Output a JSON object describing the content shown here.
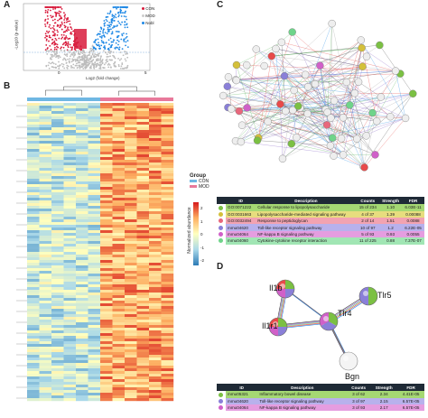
{
  "panels": {
    "A": "A",
    "B": "B",
    "C": "C",
    "D": "D"
  },
  "volcano": {
    "ylabel": "-Log10 (p-value)",
    "xlabel": "Log2 (fold change)",
    "x_ticks": [
      "0",
      "5"
    ],
    "legend": [
      {
        "label": "CON",
        "color": "#d81b3c"
      },
      {
        "label": "MOD",
        "color": "#cccccc"
      },
      {
        "label": "Nobl",
        "color": "#1e88e5"
      }
    ]
  },
  "heatmap": {
    "legend_title": "Group",
    "groups": [
      {
        "label": "CON",
        "color": "#6fb7e3"
      },
      {
        "label": "MOD",
        "color": "#e8799b"
      }
    ],
    "scale_label": "Normalized abundance",
    "scale_ticks": [
      "2",
      "1",
      "0",
      "-1",
      "-2"
    ],
    "scale_colors": {
      "high": "#d7191c",
      "mid": "#ffffbf",
      "low": "#2c7bb6"
    }
  },
  "table_c": {
    "headers": [
      "ID",
      "Description",
      "Counts",
      "Strength",
      "FDR"
    ],
    "rows": [
      {
        "id": "GO:0071222",
        "desc": "Cellular response to lipopolysaccharide",
        "counts": "15 of 234",
        "strength": "1.10",
        "fdr": "6.03E-11",
        "color": "#7bc043",
        "bg": "#a5d873"
      },
      {
        "id": "GO:0031663",
        "desc": "Lipopolysaccharide-mediated signaling pathway",
        "counts": "4 of 37",
        "strength": "1.39",
        "fdr": "0.00088",
        "color": "#d4c03a",
        "bg": "#e7dd7e"
      },
      {
        "id": "GO:0032494",
        "desc": "Response to peptidoglycan",
        "counts": "2 of 14",
        "strength": "1.51",
        "fdr": "0.0088",
        "color": "#e8677c",
        "bg": "#f2a3b1"
      },
      {
        "id": "mmu04620",
        "desc": "Toll-like receptor signaling pathway",
        "counts": "10 of 97",
        "strength": "1.2",
        "fdr": "6.22E-05",
        "color": "#8a7fd8",
        "bg": "#b8b1ec"
      },
      {
        "id": "mmu04064",
        "desc": "NF-kappa B signaling pathway",
        "counts": "5 of 93",
        "strength": "0.93",
        "fdr": "0.0055",
        "color": "#d060c8",
        "bg": "#e59de0"
      },
      {
        "id": "mmu04060",
        "desc": "Cytokine-cytokine receptor interaction",
        "counts": "11 of 225",
        "strength": "0.88",
        "fdr": "7.37E-07",
        "color": "#6fd48a",
        "bg": "#a1e6b4"
      }
    ]
  },
  "table_d": {
    "headers": [
      "ID",
      "Description",
      "Counts",
      "Strength",
      "FDR"
    ],
    "rows": [
      {
        "id": "mmu05321",
        "desc": "Inflammatory bowel disease",
        "counts": "3 of 62",
        "strength": "2.34",
        "fdr": "4.41E-05",
        "color": "#7bc043",
        "bg": "#a5d873"
      },
      {
        "id": "mmu04620",
        "desc": "Toll-like receptor signaling pathway",
        "counts": "3 of 97",
        "strength": "2.15",
        "fdr": "6.57E-05",
        "color": "#8a7fd8",
        "bg": "#b8b1ec"
      },
      {
        "id": "mmu04064",
        "desc": "NF-kappa B signaling pathway",
        "counts": "3 of 93",
        "strength": "2.17",
        "fdr": "6.57E-05",
        "color": "#d060c8",
        "bg": "#e59de0"
      }
    ]
  },
  "network_d": {
    "nodes": [
      {
        "label": "Il1b",
        "colors": [
          "#7bc043",
          "#8a7fd8",
          "#d060c8",
          "#e84a4a"
        ]
      },
      {
        "label": "Tlr4",
        "colors": [
          "#7bc043",
          "#8a7fd8",
          "#d060c8"
        ]
      },
      {
        "label": "Il1r1",
        "colors": [
          "#7bc043",
          "#8a7fd8",
          "#d060c8",
          "#e84a4a"
        ]
      },
      {
        "label": "Tlr5",
        "colors": [
          "#7bc043",
          "#8a7fd8"
        ]
      },
      {
        "label": "Bgn",
        "colors": [
          "#f4f4f4"
        ]
      }
    ]
  }
}
